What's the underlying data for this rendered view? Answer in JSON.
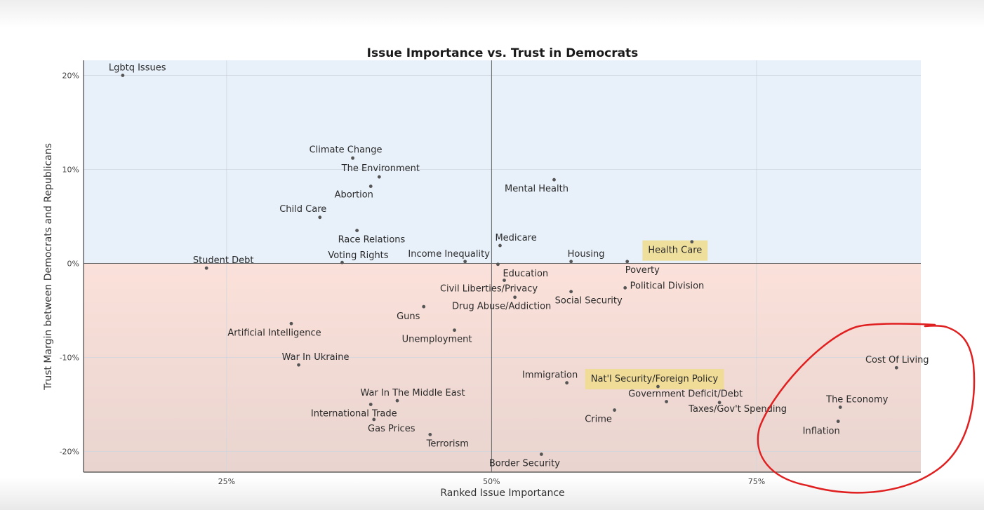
{
  "chart_data": {
    "type": "scatter",
    "title": "Issue Importance vs. Trust in Democrats",
    "xlabel": "Ranked Issue Importance",
    "ylabel": "Trust Margin between Democrats and Republicans",
    "xlim": [
      0.115,
      0.905
    ],
    "ylim": [
      -22.2,
      21.6
    ],
    "xticks": [
      {
        "value": 0.25,
        "label": "25%"
      },
      {
        "value": 0.5,
        "label": "50%"
      },
      {
        "value": 0.75,
        "label": "75%"
      }
    ],
    "yticks": [
      {
        "value": 20,
        "label": "20%"
      },
      {
        "value": 10,
        "label": "10%"
      },
      {
        "value": 0,
        "label": "0%"
      },
      {
        "value": -10,
        "label": "-10%"
      },
      {
        "value": -20,
        "label": "-20%"
      }
    ],
    "grid": true,
    "background_regions": [
      {
        "from": 0,
        "to": 21.6,
        "color": "#e8f1fa"
      },
      {
        "from": -22.2,
        "to": 0,
        "color_top": "#fbe1da",
        "color_bottom": "#e9d4cf"
      }
    ],
    "point_color": "#555555",
    "highlight_color": "#f0dc8c",
    "annotation_color": "#e02020",
    "points": [
      {
        "label": "Lgbtq Issues",
        "x": 0.152,
        "y": 20.0,
        "anchor": "start",
        "dx": -20,
        "dy": -7
      },
      {
        "label": "Climate Change",
        "x": 0.369,
        "y": 11.2,
        "anchor": "middle",
        "dx": -10,
        "dy": -8
      },
      {
        "label": "The Environment",
        "x": 0.394,
        "y": 9.2,
        "anchor": "middle",
        "dx": 2,
        "dy": -8
      },
      {
        "label": "Abortion",
        "x": 0.386,
        "y": 8.2,
        "anchor": "middle",
        "dx": -24,
        "dy": 16
      },
      {
        "label": "Child Care",
        "x": 0.338,
        "y": 4.9,
        "anchor": "middle",
        "dx": -24,
        "dy": -8
      },
      {
        "label": "Race Relations",
        "x": 0.373,
        "y": 3.5,
        "anchor": "start",
        "dx": -27,
        "dy": 17
      },
      {
        "label": "Voting Rights",
        "x": 0.359,
        "y": 0.1,
        "anchor": "middle",
        "dx": 23,
        "dy": -6
      },
      {
        "label": "Student Debt",
        "x": 0.231,
        "y": -0.5,
        "anchor": "middle",
        "dx": 24,
        "dy": -7
      },
      {
        "label": "Income Inequality",
        "x": 0.475,
        "y": 0.2,
        "anchor": "middle",
        "dx": -23,
        "dy": -7
      },
      {
        "label": "Medicare",
        "x": 0.508,
        "y": 1.9,
        "anchor": "start",
        "dx": -7,
        "dy": -7
      },
      {
        "label": "Mental Health",
        "x": 0.559,
        "y": 8.9,
        "anchor": "middle",
        "dx": -25,
        "dy": 17
      },
      {
        "label": "Housing",
        "x": 0.575,
        "y": 0.2,
        "anchor": "start",
        "dx": -5,
        "dy": -7
      },
      {
        "label": "Poverty",
        "x": 0.628,
        "y": 0.2,
        "anchor": "start",
        "dx": -3,
        "dy": 16
      },
      {
        "label": "Health Care",
        "x": 0.689,
        "y": 2.3,
        "anchor": "middle",
        "dx": -24,
        "dy": 16,
        "highlight": true
      },
      {
        "label": "Education",
        "x": 0.506,
        "y": -0.1,
        "anchor": "start",
        "dx": 7,
        "dy": 17
      },
      {
        "label": "Civil Liberties/Privacy",
        "x": 0.512,
        "y": -1.8,
        "anchor": "middle",
        "dx": -22,
        "dy": 16
      },
      {
        "label": "Political Division",
        "x": 0.626,
        "y": -2.6,
        "anchor": "start",
        "dx": 7,
        "dy": 1
      },
      {
        "label": "Social Security",
        "x": 0.575,
        "y": -3.0,
        "anchor": "middle",
        "dx": 25,
        "dy": 17
      },
      {
        "label": "Drug Abuse/Addiction",
        "x": 0.522,
        "y": -3.6,
        "anchor": "middle",
        "dx": -19,
        "dy": 17
      },
      {
        "label": "Guns",
        "x": 0.436,
        "y": -4.6,
        "anchor": "middle",
        "dx": -22,
        "dy": 18
      },
      {
        "label": "Unemployment",
        "x": 0.465,
        "y": -7.1,
        "anchor": "middle",
        "dx": -25,
        "dy": 17
      },
      {
        "label": "Artificial Intelligence",
        "x": 0.311,
        "y": -6.4,
        "anchor": "middle",
        "dx": -24,
        "dy": 17
      },
      {
        "label": "War In Ukraine",
        "x": 0.318,
        "y": -10.8,
        "anchor": "middle",
        "dx": 24,
        "dy": -7
      },
      {
        "label": "Immigration",
        "x": 0.571,
        "y": -12.7,
        "anchor": "middle",
        "dx": -24,
        "dy": -7
      },
      {
        "label": "Nat'l Security/Foreign Policy",
        "x": 0.657,
        "y": -13.1,
        "anchor": "middle",
        "dx": -5,
        "dy": -7,
        "highlight": true
      },
      {
        "label": "Government Deficit/Debt",
        "x": 0.665,
        "y": -14.7,
        "anchor": "middle",
        "dx": 27,
        "dy": -7
      },
      {
        "label": "Taxes/Gov't Spending",
        "x": 0.715,
        "y": -14.8,
        "anchor": "middle",
        "dx": 26,
        "dy": 13
      },
      {
        "label": "War In The Middle East",
        "x": 0.411,
        "y": -14.6,
        "anchor": "middle",
        "dx": 22,
        "dy": -7
      },
      {
        "label": "International Trade",
        "x": 0.386,
        "y": -15.0,
        "anchor": "middle",
        "dx": -24,
        "dy": 17
      },
      {
        "label": "Gas Prices",
        "x": 0.389,
        "y": -16.6,
        "anchor": "middle",
        "dx": 25,
        "dy": 17
      },
      {
        "label": "Terrorism",
        "x": 0.442,
        "y": -18.2,
        "anchor": "middle",
        "dx": 25,
        "dy": 17
      },
      {
        "label": "Crime",
        "x": 0.616,
        "y": -15.6,
        "anchor": "middle",
        "dx": -23,
        "dy": 17
      },
      {
        "label": "Border Security",
        "x": 0.547,
        "y": -20.3,
        "anchor": "middle",
        "dx": -24,
        "dy": 17
      },
      {
        "label": "Cost Of Living",
        "x": 0.882,
        "y": -11.1,
        "anchor": "middle",
        "dx": 1,
        "dy": -7
      },
      {
        "label": "The Economy",
        "x": 0.829,
        "y": -15.3,
        "anchor": "middle",
        "dx": 24,
        "dy": -7
      },
      {
        "label": "Inflation",
        "x": 0.827,
        "y": -16.8,
        "anchor": "middle",
        "dx": -24,
        "dy": 18
      }
    ]
  }
}
